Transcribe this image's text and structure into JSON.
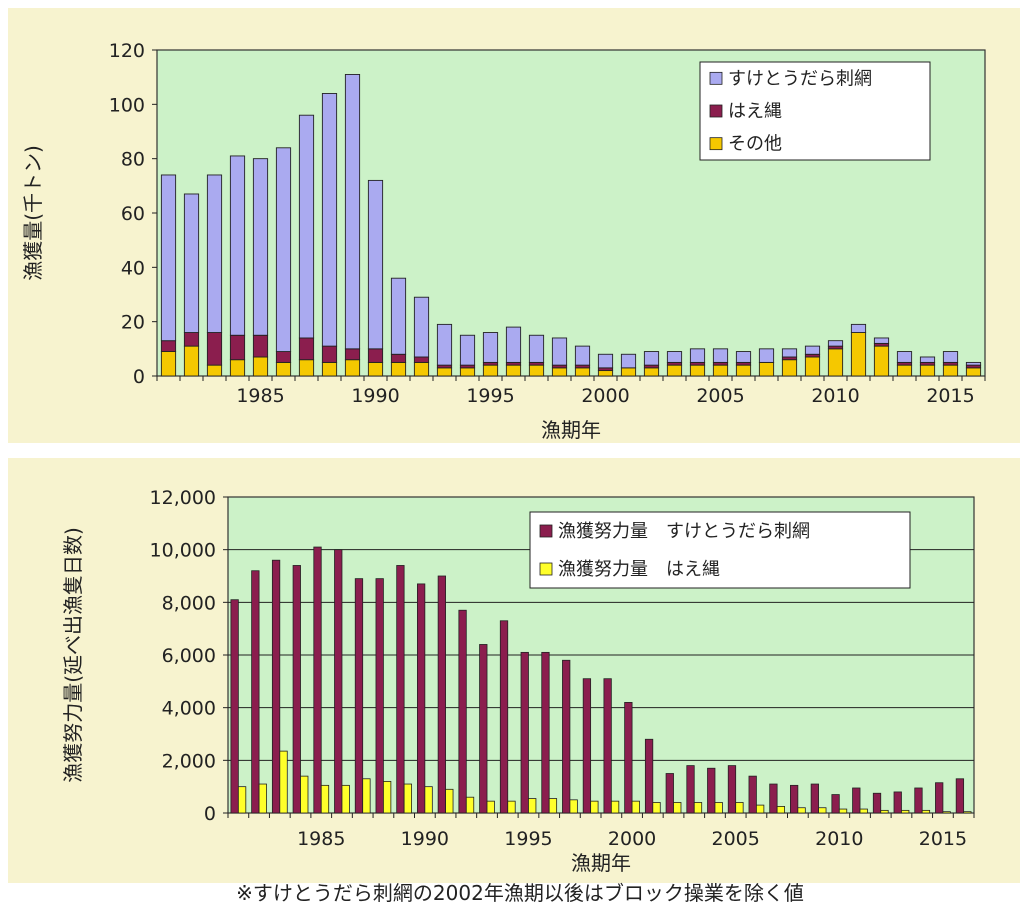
{
  "chart_data": [
    {
      "type": "bar",
      "stacked": true,
      "xlabel": "漁期年",
      "ylabel": "漁獲量(千トン)",
      "ylim": [
        0,
        120
      ],
      "yticks": [
        "0",
        "20",
        "40",
        "60",
        "80",
        "100",
        "120"
      ],
      "x_tick_labels": [
        "1985",
        "1990",
        "1995",
        "2000",
        "2005",
        "2010",
        "2015"
      ],
      "grid": false,
      "legend_position": "top-right",
      "colors": {
        "plot_bg": "#ccf2c8",
        "frame_bg": "#f7f3cf"
      },
      "x": [
        1981,
        1982,
        1983,
        1984,
        1985,
        1986,
        1987,
        1988,
        1989,
        1990,
        1991,
        1992,
        1993,
        1994,
        1995,
        1996,
        1997,
        1998,
        1999,
        2000,
        2001,
        2002,
        2003,
        2004,
        2005,
        2006,
        2007,
        2008,
        2009,
        2010,
        2011,
        2012,
        2013,
        2014,
        2015,
        2016
      ],
      "series": [
        {
          "name": "その他",
          "color": "#f5c800",
          "values": [
            9,
            11,
            4,
            6,
            7,
            5,
            6,
            5,
            6,
            5,
            5,
            5,
            3,
            3,
            4,
            4,
            4,
            3,
            3,
            2,
            3,
            3,
            4,
            4,
            4,
            4,
            5,
            6,
            7,
            10,
            16,
            11,
            4,
            4,
            4,
            3
          ]
        },
        {
          "name": "はえ縄",
          "color": "#8b1e4e",
          "values": [
            4,
            5,
            12,
            9,
            8,
            4,
            8,
            6,
            4,
            5,
            3,
            2,
            1,
            1,
            1,
            1,
            1,
            1,
            1,
            1,
            0,
            1,
            1,
            1,
            1,
            1,
            0,
            1,
            1,
            1,
            0,
            1,
            1,
            1,
            1,
            1
          ]
        },
        {
          "name": "すけとうだら刺網",
          "color": "#aaaaf0",
          "values": [
            61,
            51,
            58,
            66,
            65,
            75,
            82,
            93,
            101,
            62,
            28,
            22,
            15,
            11,
            11,
            13,
            10,
            10,
            7,
            5,
            5,
            5,
            4,
            5,
            5,
            4,
            5,
            3,
            3,
            2,
            3,
            2,
            4,
            2,
            4,
            1
          ]
        }
      ]
    },
    {
      "type": "bar",
      "xlabel": "漁期年",
      "ylabel": "漁獲努力量(延べ出漁隻日数)",
      "ylim": [
        0,
        12000
      ],
      "yticks": [
        "0",
        "2,000",
        "4,000",
        "6,000",
        "8,000",
        "10,000",
        "12,000"
      ],
      "x_tick_labels": [
        "1985",
        "1990",
        "1995",
        "2000",
        "2005",
        "2010",
        "2015"
      ],
      "grid": true,
      "legend_position": "top-right",
      "colors": {
        "plot_bg": "#ccf2c8",
        "frame_bg": "#f7f3cf"
      },
      "x": [
        1981,
        1982,
        1983,
        1984,
        1985,
        1986,
        1987,
        1988,
        1989,
        1990,
        1991,
        1992,
        1993,
        1994,
        1995,
        1996,
        1997,
        1998,
        1999,
        2000,
        2001,
        2002,
        2003,
        2004,
        2005,
        2006,
        2007,
        2008,
        2009,
        2010,
        2011,
        2012,
        2013,
        2014,
        2015,
        2016
      ],
      "series": [
        {
          "name": "漁獲努力量　すけとうだら刺網",
          "color": "#8b1e4e",
          "values": [
            8100,
            9200,
            9600,
            9400,
            10100,
            10000,
            8900,
            8900,
            9400,
            8700,
            9000,
            7700,
            6400,
            7300,
            6100,
            6100,
            5800,
            5100,
            5100,
            4200,
            2800,
            1500,
            1800,
            1700,
            1800,
            1400,
            1100,
            1050,
            1100,
            700,
            950,
            750,
            800,
            950,
            1150,
            1300
          ]
        },
        {
          "name": "漁獲努力量　はえ縄",
          "color": "#ffff2a",
          "values": [
            1000,
            1100,
            2350,
            1400,
            1050,
            1050,
            1300,
            1200,
            1100,
            1000,
            900,
            600,
            450,
            450,
            550,
            550,
            500,
            450,
            450,
            450,
            400,
            400,
            400,
            400,
            400,
            300,
            250,
            200,
            200,
            150,
            150,
            100,
            100,
            100,
            50,
            50
          ]
        }
      ]
    }
  ],
  "footnote": "※すけとうだら刺網の2002年漁期以後はブロック操業を除く値"
}
